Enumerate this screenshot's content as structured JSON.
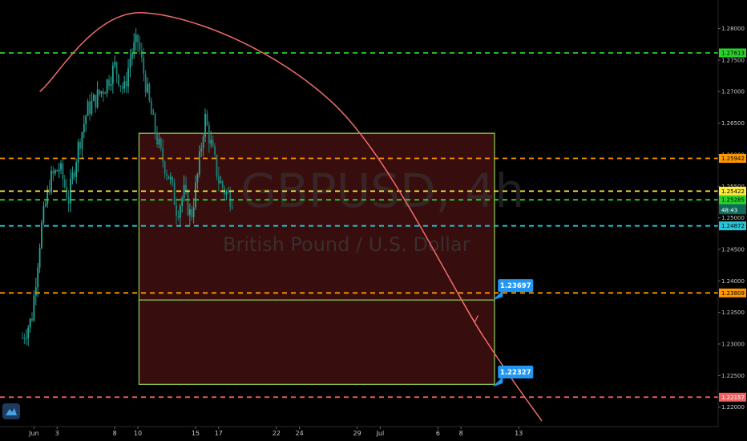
{
  "watermark": {
    "symbol": "GBPUSD, 4h",
    "description": "British Pound / U.S. Dollar"
  },
  "chart_data": {
    "type": "candlestick",
    "symbol": "GBPUSD",
    "timeframe": "4h",
    "ylim": [
      1.2178,
      1.2835
    ],
    "y_ticks": [
      1.28,
      1.275,
      1.27,
      1.265,
      1.26,
      1.255,
      1.25,
      1.245,
      1.24,
      1.235,
      1.23,
      1.225,
      1.22
    ],
    "y_tick_labels": [
      "1.28000",
      "1.27500",
      "1.27000",
      "1.26500",
      "1.26000",
      "1.25500",
      "1.25000",
      "1.24500",
      "1.24000",
      "1.23500",
      "1.23000",
      "1.22500",
      "1.22000"
    ],
    "x_ticks": [
      {
        "label": "Jun",
        "day": 1
      },
      {
        "label": "3",
        "day": 3
      },
      {
        "label": "8",
        "day": 8
      },
      {
        "label": "10",
        "day": 10
      },
      {
        "label": "15",
        "day": 15
      },
      {
        "label": "17",
        "day": 17
      },
      {
        "label": "22",
        "day": 22
      },
      {
        "label": "24",
        "day": 24
      },
      {
        "label": "29",
        "day": 29
      },
      {
        "label": "Jul",
        "day": 31
      },
      {
        "label": "6",
        "day": 36
      },
      {
        "label": "8",
        "day": 38
      },
      {
        "label": "13",
        "day": 43
      }
    ],
    "candle_waypoints": [
      {
        "day": 0.0,
        "price": 1.231
      },
      {
        "day": 0.8,
        "price": 1.234
      },
      {
        "day": 1.6,
        "price": 1.248
      },
      {
        "day": 2.4,
        "price": 1.256
      },
      {
        "day": 3.2,
        "price": 1.258
      },
      {
        "day": 4.0,
        "price": 1.253
      },
      {
        "day": 4.8,
        "price": 1.261
      },
      {
        "day": 5.6,
        "price": 1.267
      },
      {
        "day": 6.4,
        "price": 1.269
      },
      {
        "day": 7.2,
        "price": 1.271
      },
      {
        "day": 8.0,
        "price": 1.274
      },
      {
        "day": 8.8,
        "price": 1.27
      },
      {
        "day": 9.4,
        "price": 1.276
      },
      {
        "day": 10.0,
        "price": 1.278
      },
      {
        "day": 10.6,
        "price": 1.272
      },
      {
        "day": 11.2,
        "price": 1.266
      },
      {
        "day": 12.0,
        "price": 1.26
      },
      {
        "day": 12.8,
        "price": 1.256
      },
      {
        "day": 13.4,
        "price": 1.251
      },
      {
        "day": 14.0,
        "price": 1.254
      },
      {
        "day": 14.6,
        "price": 1.25
      },
      {
        "day": 15.2,
        "price": 1.257
      },
      {
        "day": 15.8,
        "price": 1.266
      },
      {
        "day": 16.4,
        "price": 1.261
      },
      {
        "day": 17.0,
        "price": 1.256
      },
      {
        "day": 17.6,
        "price": 1.254
      },
      {
        "day": 18.2,
        "price": 1.253
      }
    ],
    "horizontal_levels": [
      {
        "price": 1.27613,
        "label": "1.27613",
        "color": "#2bd12b"
      },
      {
        "price": 1.25942,
        "label": "1.25942",
        "color": "#ff9800"
      },
      {
        "price": 1.25422,
        "label": "1.25422",
        "color": "#ffeb3b"
      },
      {
        "price": 1.25285,
        "label": "1.25285",
        "color": "#2bd12b"
      },
      {
        "price": 1.24872,
        "label": "1.24872",
        "color": "#26c6da"
      },
      {
        "price": 1.23809,
        "label": "1.23809",
        "color": "#ff9800"
      },
      {
        "price": 1.22157,
        "label": "1.22157",
        "color": "#f06262"
      }
    ],
    "price_tags": [
      {
        "price": 1.25254,
        "label": "1.25254",
        "color": "#0f6a5a"
      },
      {
        "price": 1.25125,
        "label": "48:43",
        "color": "#0f6a5a"
      }
    ],
    "rectangles": [
      {
        "day_start": 10.1,
        "day_end": 40.9,
        "price_top": 1.2634,
        "price_bottom": 1.23697,
        "stroke": "#8bc34a",
        "fill": "#3d0e0e"
      },
      {
        "day_start": 10.1,
        "day_end": 40.9,
        "price_top": 1.23697,
        "price_bottom": 1.2236,
        "stroke": "#8bc34a",
        "fill": "#3d0e0e"
      }
    ],
    "callouts": [
      {
        "price": 1.23697,
        "label": "1.23697",
        "day": 41.2
      },
      {
        "price": 1.22327,
        "label": "1.22327",
        "day": 41.2
      }
    ],
    "arc": {
      "color": "#f06c6c",
      "points": [
        {
          "day": 1.5,
          "price": 1.27
        },
        {
          "day": 10.4,
          "price": 1.2825
        },
        {
          "day": 27.0,
          "price": 1.268
        },
        {
          "day": 40.0,
          "price": 1.231
        },
        {
          "day": 45.0,
          "price": 1.2178
        }
      ],
      "arrow_day": 39.2
    }
  }
}
